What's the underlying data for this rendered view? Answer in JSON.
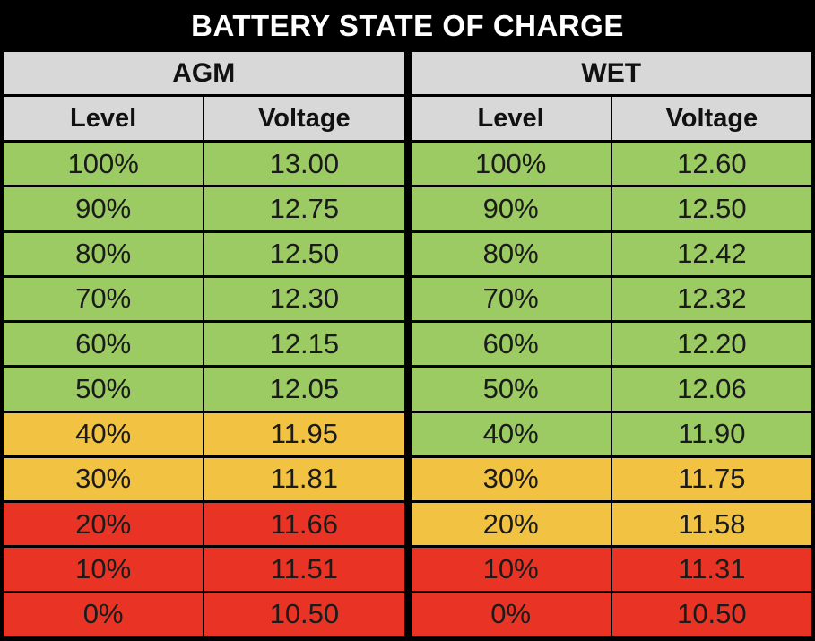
{
  "title": "BATTERY STATE OF CHARGE",
  "colors": {
    "frame": "#000000",
    "title_text": "#FFFFFF",
    "header_bg": "#D8D8D8",
    "green": "#9BCB62",
    "yellow": "#F2C343",
    "red": "#E93425"
  },
  "chart_data": {
    "type": "table",
    "title": "BATTERY STATE OF CHARGE",
    "sections": [
      {
        "name": "AGM",
        "columns": [
          "Level",
          "Voltage"
        ],
        "rows": [
          {
            "level": "100%",
            "voltage": "13.00",
            "status": "green"
          },
          {
            "level": "90%",
            "voltage": "12.75",
            "status": "green"
          },
          {
            "level": "80%",
            "voltage": "12.50",
            "status": "green"
          },
          {
            "level": "70%",
            "voltage": "12.30",
            "status": "green"
          },
          {
            "level": "60%",
            "voltage": "12.15",
            "status": "green"
          },
          {
            "level": "50%",
            "voltage": "12.05",
            "status": "green"
          },
          {
            "level": "40%",
            "voltage": "11.95",
            "status": "yellow"
          },
          {
            "level": "30%",
            "voltage": "11.81",
            "status": "yellow"
          },
          {
            "level": "20%",
            "voltage": "11.66",
            "status": "red"
          },
          {
            "level": "10%",
            "voltage": "11.51",
            "status": "red"
          },
          {
            "level": "0%",
            "voltage": "10.50",
            "status": "red"
          }
        ]
      },
      {
        "name": "WET",
        "columns": [
          "Level",
          "Voltage"
        ],
        "rows": [
          {
            "level": "100%",
            "voltage": "12.60",
            "status": "green"
          },
          {
            "level": "90%",
            "voltage": "12.50",
            "status": "green"
          },
          {
            "level": "80%",
            "voltage": "12.42",
            "status": "green"
          },
          {
            "level": "70%",
            "voltage": "12.32",
            "status": "green"
          },
          {
            "level": "60%",
            "voltage": "12.20",
            "status": "green"
          },
          {
            "level": "50%",
            "voltage": "12.06",
            "status": "green"
          },
          {
            "level": "40%",
            "voltage": "11.90",
            "status": "green"
          },
          {
            "level": "30%",
            "voltage": "11.75",
            "status": "yellow"
          },
          {
            "level": "20%",
            "voltage": "11.58",
            "status": "yellow"
          },
          {
            "level": "10%",
            "voltage": "11.31",
            "status": "red"
          },
          {
            "level": "0%",
            "voltage": "10.50",
            "status": "red"
          }
        ]
      }
    ]
  }
}
